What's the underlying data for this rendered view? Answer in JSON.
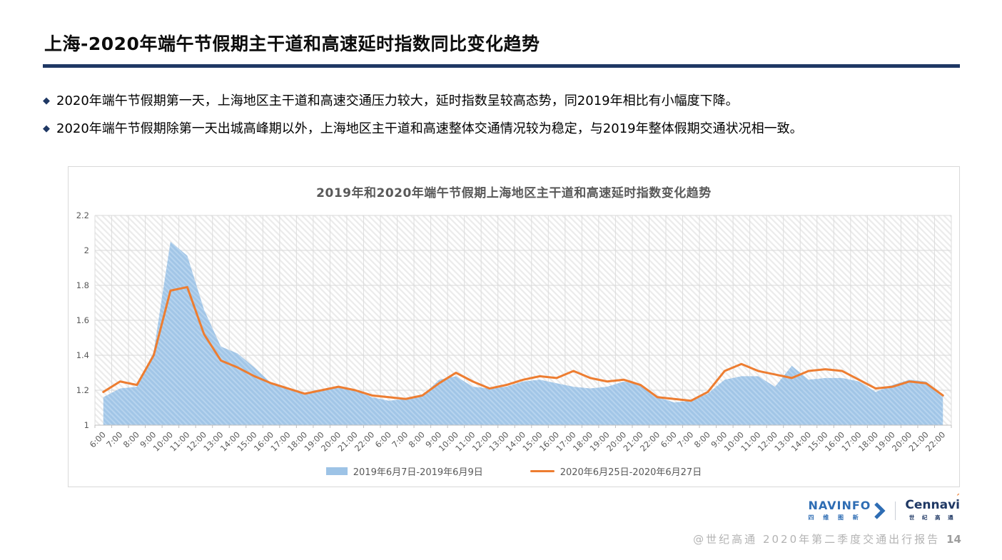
{
  "colors": {
    "navy": "#1F3864",
    "orange": "#ED7D31",
    "blue": "#9DC3E6",
    "blue_stripe": "#B3D2EE",
    "grid": "#D9D9D9",
    "hatch": "#EBEBEB",
    "axis_line": "#BFBFBF",
    "axis_text": "#595959"
  },
  "header": {
    "title": "上海-2020年端午节假期主干道和高速延时指数同比变化趋势"
  },
  "bullets": {
    "marker": "◆",
    "items": [
      "2020年端午节假期第一天，上海地区主干道和高速交通压力较大，延时指数呈较高态势，同2019年相比有小幅度下降。",
      "2020年端午节假期除第一天出城高峰期以外，上海地区主干道和高速整体交通情况较为稳定，与2019年整体假期交通状况相一致。"
    ]
  },
  "chart_data": {
    "type": "area+line",
    "title": "2019年和2020年端午节假期上海地区主干道和高速延时指数变化趋势",
    "xlabel": "",
    "ylabel": "",
    "ylim": [
      1,
      2.2
    ],
    "yticks": [
      1,
      1.2,
      1.4,
      1.6,
      1.8,
      2,
      2.2
    ],
    "grid": true,
    "plot_background": "diagonal-hatch",
    "legend_position": "bottom",
    "x": [
      "6:00",
      "7:00",
      "8:00",
      "9:00",
      "10:00",
      "11:00",
      "12:00",
      "13:00",
      "14:00",
      "15:00",
      "16:00",
      "17:00",
      "18:00",
      "19:00",
      "20:00",
      "21:00",
      "22:00",
      "6:00",
      "7:00",
      "8:00",
      "9:00",
      "10:00",
      "11:00",
      "12:00",
      "13:00",
      "14:00",
      "15:00",
      "16:00",
      "17:00",
      "18:00",
      "19:00",
      "20:00",
      "21:00",
      "22:00",
      "6:00",
      "7:00",
      "8:00",
      "9:00",
      "10:00",
      "11:00",
      "12:00",
      "13:00",
      "14:00",
      "15:00",
      "16:00",
      "17:00",
      "18:00",
      "19:00",
      "20:00",
      "21:00",
      "22:00"
    ],
    "series": [
      {
        "name": "2019年6月7日-2019年6月9日",
        "type": "area",
        "color": "#9DC3E6",
        "values": [
          1.16,
          1.21,
          1.22,
          1.42,
          2.05,
          1.97,
          1.66,
          1.45,
          1.41,
          1.33,
          1.24,
          1.21,
          1.18,
          1.2,
          1.22,
          1.2,
          1.16,
          1.14,
          1.15,
          1.17,
          1.26,
          1.28,
          1.22,
          1.21,
          1.22,
          1.25,
          1.26,
          1.24,
          1.22,
          1.21,
          1.22,
          1.25,
          1.23,
          1.16,
          1.13,
          1.14,
          1.18,
          1.26,
          1.28,
          1.28,
          1.22,
          1.34,
          1.26,
          1.27,
          1.27,
          1.25,
          1.19,
          1.23,
          1.26,
          1.25,
          1.17
        ]
      },
      {
        "name": "2020年6月25日-2020年6月27日",
        "type": "line",
        "color": "#ED7D31",
        "values": [
          1.19,
          1.25,
          1.23,
          1.4,
          1.77,
          1.79,
          1.52,
          1.37,
          1.33,
          1.28,
          1.24,
          1.21,
          1.18,
          1.2,
          1.22,
          1.2,
          1.17,
          1.16,
          1.15,
          1.17,
          1.24,
          1.3,
          1.25,
          1.21,
          1.23,
          1.26,
          1.28,
          1.27,
          1.31,
          1.27,
          1.25,
          1.26,
          1.23,
          1.16,
          1.15,
          1.14,
          1.19,
          1.31,
          1.35,
          1.31,
          1.29,
          1.27,
          1.31,
          1.32,
          1.31,
          1.26,
          1.21,
          1.22,
          1.25,
          1.24,
          1.17
        ]
      }
    ]
  },
  "footer": {
    "navinfo": {
      "text": "NAVINFO",
      "sub": "四 维 图 新"
    },
    "cennavi": {
      "text": "Cennavi",
      "accent": "´",
      "sub": "世 纪 高 通"
    },
    "credit": "@世纪高通  2020年第二季度交通出行报告",
    "page_number": "14"
  }
}
